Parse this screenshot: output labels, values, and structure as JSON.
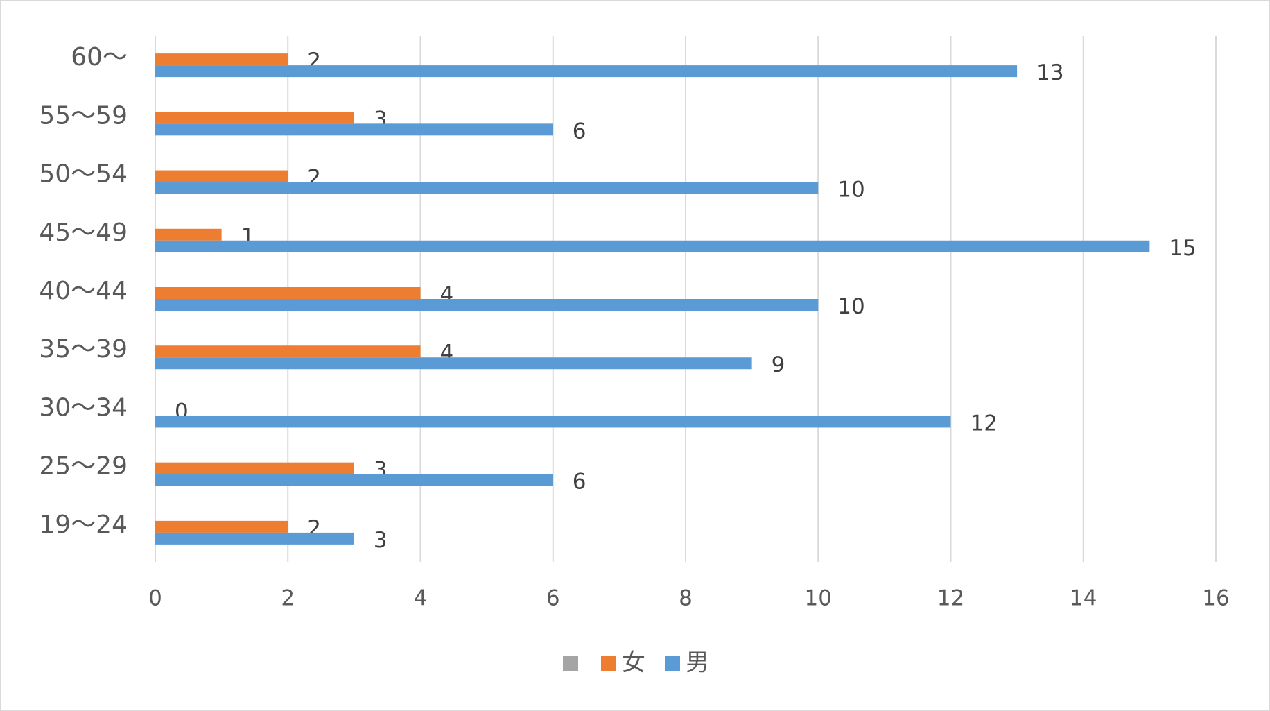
{
  "chart_data": {
    "type": "hbar",
    "categories": [
      "19～24",
      "25～29",
      "30～34",
      "35～39",
      "40～44",
      "45～49",
      "50～54",
      "55～59",
      "60～"
    ],
    "series": [
      {
        "name": null,
        "color": "#a5a5a5",
        "values": [
          null,
          null,
          null,
          null,
          null,
          null,
          null,
          null,
          null
        ]
      },
      {
        "name": "女",
        "color": "#ed7d31",
        "values": [
          2,
          3,
          0,
          4,
          4,
          1,
          2,
          3,
          2
        ]
      },
      {
        "name": "男",
        "color": "#5b9bd5",
        "values": [
          3,
          6,
          12,
          9,
          10,
          15,
          10,
          6,
          13
        ]
      }
    ],
    "xlim": [
      0,
      16
    ],
    "xticks": [
      0,
      2,
      4,
      6,
      8,
      10,
      12,
      14,
      16
    ],
    "grid": true,
    "legend": "bottom"
  }
}
